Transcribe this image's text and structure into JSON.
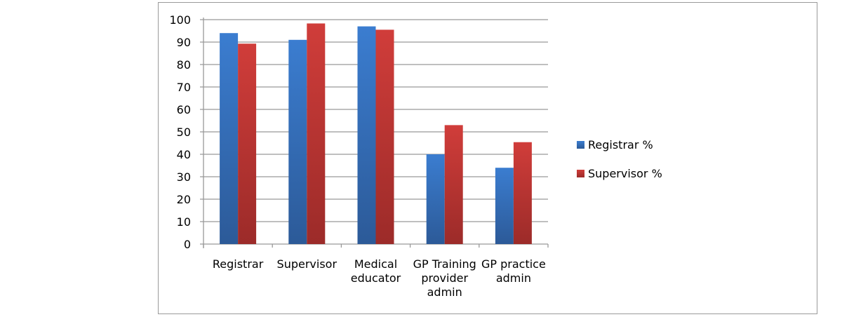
{
  "chart_data": {
    "type": "bar",
    "title": "",
    "xlabel": "",
    "ylabel": "",
    "ylim": [
      0,
      100
    ],
    "yticks": [
      0,
      10,
      20,
      30,
      40,
      50,
      60,
      70,
      80,
      90,
      100
    ],
    "grid": true,
    "legend_position": "right",
    "categories": [
      [
        "Registrar"
      ],
      [
        "Supervisor"
      ],
      [
        "Medical",
        "educator"
      ],
      [
        "GP Training",
        "provider",
        "admin"
      ],
      [
        "GP practice",
        "admin"
      ]
    ],
    "series": [
      {
        "name": "Registrar %",
        "color": "#3b7dd0",
        "color_dark": "#2c5a98",
        "values": [
          94,
          91,
          97,
          40,
          34
        ]
      },
      {
        "name": "Supervisor %",
        "color": "#d03d3a",
        "color_dark": "#9c2b29",
        "values": [
          89.3,
          98.3,
          95.5,
          53,
          45.4
        ]
      }
    ]
  }
}
